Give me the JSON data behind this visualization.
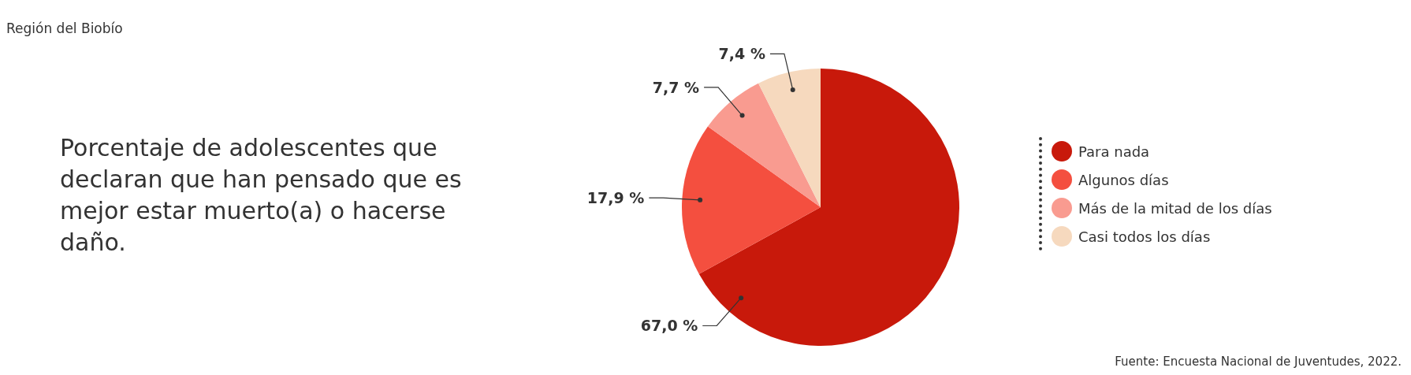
{
  "chart_data": {
    "type": "pie",
    "title": "Porcentaje de adolescentes que declaran que han pensado que es mejor estar muerto(a) o hacerse daño.",
    "subtitle": "Región del Biobío",
    "annotations": [
      "Fuente: Encuesta Nacional de Juventudes, 2022."
    ],
    "categories": [
      "Para nada",
      "Algunos días",
      "Más de la mitad de los días",
      "Casi todos los días"
    ],
    "values": [
      67.0,
      17.9,
      7.7,
      7.4
    ],
    "value_labels": [
      "67,0 %",
      "17,9 %",
      "7,7 %",
      "7,4 %"
    ],
    "colors": [
      "#c8190b",
      "#f44f3f",
      "#f99b90",
      "#f6d9be"
    ],
    "legend": "right"
  }
}
